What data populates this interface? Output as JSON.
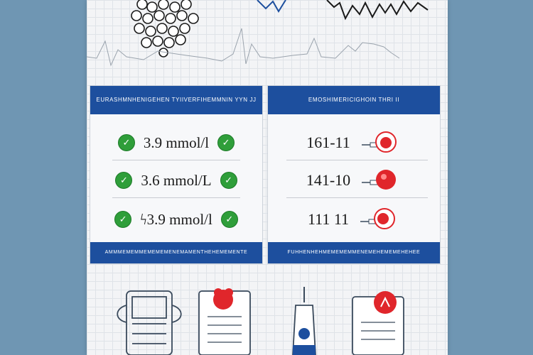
{
  "left_panel": {
    "header": "EURASHMNHENIGEHEN TYIIVERFIHEMMNIN YYN JJ",
    "rows": [
      {
        "value": "3.9 mmol/l",
        "icon": "check-icon"
      },
      {
        "value": "3.6 mmol/L",
        "icon": "check-icon"
      },
      {
        "value": "ϟ3.9 mmol/l",
        "icon": "check-icon"
      }
    ],
    "footer": "AMMMEMEMMEMEMEMENEMAMENTHEHEMEMENTE"
  },
  "right_panel": {
    "header": "EMOSHIMERICIGHOIN THRI II",
    "rows": [
      {
        "value": "161-11",
        "icon": "blood-drop-icon"
      },
      {
        "value": "141-10",
        "icon": "blood-drop-icon"
      },
      {
        "value": "111 11",
        "icon": "blood-drop-icon"
      }
    ],
    "footer": "FUHHENHEHMEMEMEMMENEMEHEMEMEHEHEE"
  },
  "colors": {
    "accent_blue": "#1d4f9e",
    "check_green": "#2f9e3a",
    "drop_red": "#e0262b",
    "background": "#6f96b3"
  }
}
